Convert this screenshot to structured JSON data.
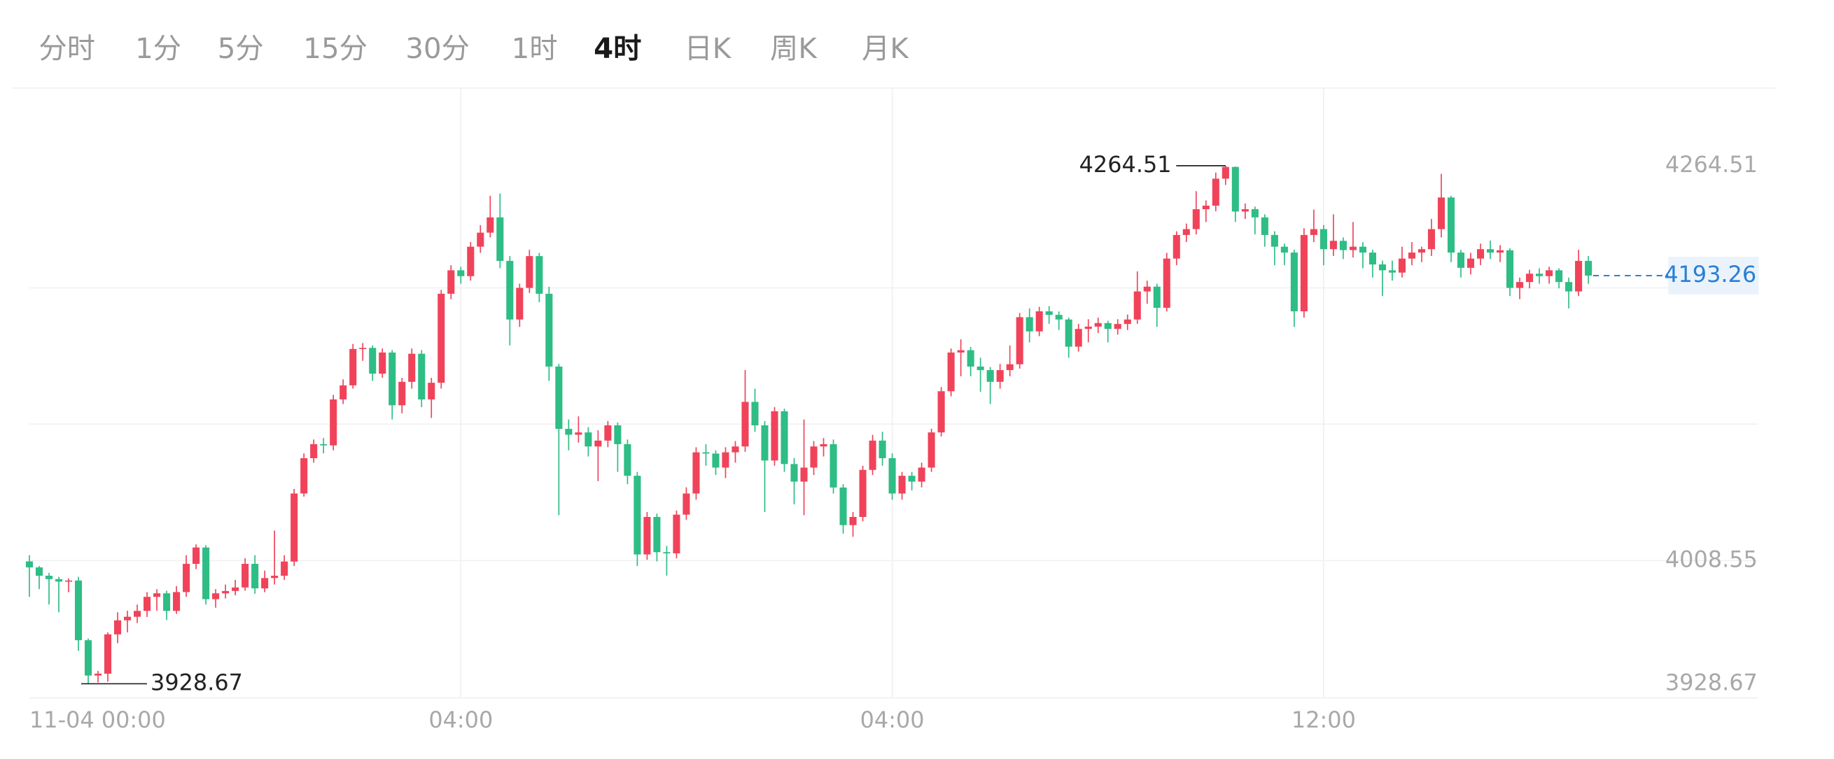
{
  "tabs": {
    "items": [
      "分时",
      "1分",
      "5分",
      "15分",
      "30分",
      "1时",
      "4时",
      "日K",
      "周K",
      "月K"
    ],
    "active": 6
  },
  "chart_data": {
    "type": "candlestick",
    "up_color": "#f0435a",
    "down_color": "#2ebd85",
    "last_color": "#2a7fd4",
    "ylim": [
      3919.5,
      4314.8
    ],
    "yticks": [
      3928.67,
      4008.55,
      4264.51
    ],
    "ygrid": [
      4008.55,
      4097.0,
      4185.3
    ],
    "xticks": [
      {
        "value": 0,
        "label": "11-04 00:00"
      },
      {
        "value": 44,
        "label": "04:00"
      },
      {
        "value": 88,
        "label": "04:00"
      },
      {
        "value": 132,
        "label": "12:00"
      }
    ],
    "high_index": 122,
    "low_index": 6,
    "candles": [
      [
        4008.0,
        4012.0,
        3985.0,
        4004.1
      ],
      [
        4004.1,
        4005.0,
        3990.0,
        3998.7
      ],
      [
        3998.7,
        4000.5,
        3980.0,
        3996.5
      ],
      [
        3996.5,
        3998.0,
        3975.0,
        3994.9
      ],
      [
        3994.9,
        3997.0,
        3988.0,
        3995.6
      ],
      [
        3995.6,
        3998.0,
        3950.0,
        3956.9
      ],
      [
        3956.9,
        3958.0,
        3928.67,
        3934.0
      ],
      [
        3934.0,
        3937.0,
        3929.5,
        3935.2
      ],
      [
        3935.2,
        3962.0,
        3930.0,
        3960.7
      ],
      [
        3960.7,
        3975.0,
        3955.0,
        3969.8
      ],
      [
        3969.8,
        3976.0,
        3962.0,
        3972.1
      ],
      [
        3972.1,
        3980.0,
        3968.0,
        3975.9
      ],
      [
        3975.9,
        3988.0,
        3972.0,
        3985.0
      ],
      [
        3985.0,
        3990.0,
        3976.0,
        3987.3
      ],
      [
        3987.3,
        3989.0,
        3970.0,
        3975.9
      ],
      [
        3975.9,
        3992.0,
        3974.0,
        3988.1
      ],
      [
        3988.1,
        4012.0,
        3985.0,
        4006.4
      ],
      [
        4006.4,
        4019.0,
        4003.0,
        4017.0
      ],
      [
        4017.0,
        4018.5,
        3980.0,
        3983.5
      ],
      [
        3983.5,
        3990.0,
        3978.0,
        3987.3
      ],
      [
        3987.3,
        3993.0,
        3984.0,
        3988.8
      ],
      [
        3988.8,
        3996.0,
        3986.0,
        3991.1
      ],
      [
        3991.1,
        4010.0,
        3989.0,
        4006.4
      ],
      [
        4006.4,
        4012.0,
        3987.0,
        3990.5
      ],
      [
        3990.5,
        4002.0,
        3988.0,
        3997.2
      ],
      [
        3997.2,
        4028.0,
        3993.0,
        3998.7
      ],
      [
        3998.7,
        4012.0,
        3996.0,
        4007.9
      ],
      [
        4007.9,
        4055.0,
        4005.0,
        4052.0
      ],
      [
        4052.0,
        4078.0,
        4050.0,
        4074.9
      ],
      [
        4074.9,
        4087.0,
        4072.0,
        4084.0
      ],
      [
        4084.0,
        4088.0,
        4078.0,
        4083.2
      ],
      [
        4083.2,
        4116.0,
        4080.0,
        4113.0
      ],
      [
        4113.0,
        4126.0,
        4110.0,
        4122.1
      ],
      [
        4122.1,
        4149.0,
        4120.0,
        4145.7
      ],
      [
        4145.7,
        4149.5,
        4138.0,
        4146.4
      ],
      [
        4146.4,
        4148.0,
        4125.0,
        4129.7
      ],
      [
        4129.7,
        4146.0,
        4127.0,
        4143.4
      ],
      [
        4143.4,
        4145.0,
        4100.0,
        4109.2
      ],
      [
        4109.2,
        4127.0,
        4104.0,
        4124.4
      ],
      [
        4124.4,
        4146.0,
        4120.0,
        4142.6
      ],
      [
        4142.6,
        4145.0,
        4108.0,
        4113.0
      ],
      [
        4113.0,
        4127.0,
        4101.0,
        4123.8
      ],
      [
        4123.8,
        4184.0,
        4120.0,
        4181.5
      ],
      [
        4181.5,
        4200.0,
        4178.0,
        4196.7
      ],
      [
        4196.7,
        4199.0,
        4188.0,
        4192.9
      ],
      [
        4192.9,
        4215.0,
        4190.0,
        4212.0
      ],
      [
        4212.0,
        4226.0,
        4208.0,
        4221.1
      ],
      [
        4221.1,
        4245.0,
        4218.0,
        4231.0
      ],
      [
        4231.0,
        4246.5,
        4198.0,
        4202.8
      ],
      [
        4202.8,
        4206.0,
        4148.0,
        4164.8
      ],
      [
        4164.8,
        4188.0,
        4160.0,
        4185.3
      ],
      [
        4185.3,
        4210.0,
        4182.0,
        4205.9
      ],
      [
        4205.9,
        4208.0,
        4176.0,
        4181.5
      ],
      [
        4181.5,
        4186.0,
        4125.0,
        4134.3
      ],
      [
        4134.3,
        4136.0,
        4038.0,
        4093.9
      ],
      [
        4093.9,
        4100.0,
        4080.0,
        4090.1
      ],
      [
        4090.1,
        4102.0,
        4085.0,
        4091.6
      ],
      [
        4091.6,
        4095.0,
        4076.0,
        4082.5
      ],
      [
        4082.5,
        4093.0,
        4060.0,
        4086.3
      ],
      [
        4086.3,
        4099.0,
        4082.0,
        4096.2
      ],
      [
        4096.2,
        4098.0,
        4066.0,
        4084.0
      ],
      [
        4084.0,
        4087.0,
        4058.0,
        4063.5
      ],
      [
        4063.5,
        4066.0,
        4005.0,
        4012.5
      ],
      [
        4012.5,
        4040.0,
        4009.0,
        4036.8
      ],
      [
        4036.8,
        4039.0,
        4008.0,
        4014.0
      ],
      [
        4014.0,
        4018.0,
        3998.8,
        4013.2
      ],
      [
        4013.2,
        4041.0,
        4010.0,
        4038.3
      ],
      [
        4038.3,
        4056.0,
        4035.0,
        4052.0
      ],
      [
        4052.0,
        4082.0,
        4048.0,
        4078.7
      ],
      [
        4078.7,
        4084.0,
        4070.0,
        4077.9
      ],
      [
        4077.9,
        4080.0,
        4064.0,
        4068.8
      ],
      [
        4068.8,
        4082.0,
        4062.0,
        4078.7
      ],
      [
        4078.7,
        4086.0,
        4072.0,
        4082.5
      ],
      [
        4082.5,
        4132.0,
        4079.0,
        4111.4
      ],
      [
        4111.4,
        4120.0,
        4092.0,
        4096.2
      ],
      [
        4096.2,
        4099.0,
        4040.0,
        4073.4
      ],
      [
        4073.4,
        4108.0,
        4070.0,
        4105.3
      ],
      [
        4105.3,
        4107.0,
        4066.0,
        4071.1
      ],
      [
        4071.1,
        4075.0,
        4045.0,
        4059.7
      ],
      [
        4059.7,
        4100.0,
        4038.0,
        4068.8
      ],
      [
        4068.8,
        4086.0,
        4064.0,
        4082.5
      ],
      [
        4082.5,
        4088.0,
        4076.0,
        4084.0
      ],
      [
        4084.0,
        4087.0,
        4052.0,
        4055.9
      ],
      [
        4055.9,
        4058.0,
        4026.0,
        4031.5
      ],
      [
        4031.5,
        4040.0,
        4024.0,
        4036.8
      ],
      [
        4036.8,
        4070.0,
        4034.0,
        4067.3
      ],
      [
        4067.3,
        4090.0,
        4064.0,
        4086.3
      ],
      [
        4086.3,
        4092.0,
        4070.0,
        4074.9
      ],
      [
        4074.9,
        4078.0,
        4048.0,
        4052.0
      ],
      [
        4052.0,
        4066.0,
        4048.0,
        4063.5
      ],
      [
        4063.5,
        4066.0,
        4054.0,
        4059.7
      ],
      [
        4059.7,
        4072.0,
        4056.0,
        4068.8
      ],
      [
        4068.8,
        4094.0,
        4066.0,
        4091.6
      ],
      [
        4091.6,
        4121.0,
        4089.0,
        4118.3
      ],
      [
        4118.3,
        4146.0,
        4115.0,
        4143.4
      ],
      [
        4143.4,
        4152.0,
        4128.0,
        4144.9
      ],
      [
        4144.9,
        4147.0,
        4128.0,
        4134.3
      ],
      [
        4134.3,
        4140.0,
        4118.0,
        4132.0
      ],
      [
        4132.0,
        4134.0,
        4110.0,
        4124.4
      ],
      [
        4124.4,
        4136.0,
        4120.0,
        4132.0
      ],
      [
        4132.0,
        4148.0,
        4128.0,
        4135.8
      ],
      [
        4135.8,
        4169.0,
        4133.0,
        4166.3
      ],
      [
        4166.3,
        4172.0,
        4150.0,
        4157.1
      ],
      [
        4157.1,
        4173.0,
        4154.0,
        4170.1
      ],
      [
        4170.1,
        4173.5,
        4162.0,
        4167.8
      ],
      [
        4167.8,
        4170.0,
        4158.0,
        4164.8
      ],
      [
        4164.8,
        4166.0,
        4140.0,
        4147.2
      ],
      [
        4147.2,
        4162.0,
        4144.0,
        4158.7
      ],
      [
        4158.7,
        4165.0,
        4150.0,
        4160.2
      ],
      [
        4160.2,
        4166.0,
        4156.0,
        4162.5
      ],
      [
        4162.5,
        4164.0,
        4150.0,
        4158.7
      ],
      [
        4158.7,
        4165.0,
        4155.0,
        4161.9
      ],
      [
        4161.9,
        4168.0,
        4158.0,
        4164.8
      ],
      [
        4164.8,
        4196.0,
        4162.0,
        4183.0
      ],
      [
        4183.0,
        4190.0,
        4175.0,
        4186.1
      ],
      [
        4186.1,
        4188.0,
        4160.0,
        4172.4
      ],
      [
        4172.4,
        4208.0,
        4170.0,
        4204.3
      ],
      [
        4204.3,
        4222.0,
        4200.0,
        4219.6
      ],
      [
        4219.6,
        4227.0,
        4215.0,
        4223.4
      ],
      [
        4223.4,
        4248.0,
        4220.0,
        4236.3
      ],
      [
        4236.3,
        4242.0,
        4228.0,
        4238.6
      ],
      [
        4238.6,
        4260.0,
        4235.0,
        4256.1
      ],
      [
        4256.1,
        4264.51,
        4252.0,
        4263.7
      ],
      [
        4263.7,
        4264.0,
        4228.0,
        4234.8
      ],
      [
        4234.8,
        4240.0,
        4230.0,
        4236.3
      ],
      [
        4236.3,
        4238.0,
        4220.0,
        4231.0
      ],
      [
        4231.0,
        4233.0,
        4212.0,
        4219.6
      ],
      [
        4219.6,
        4222.0,
        4200.0,
        4212.0
      ],
      [
        4212.0,
        4214.0,
        4200.0,
        4208.2
      ],
      [
        4208.2,
        4210.0,
        4160.0,
        4170.1
      ],
      [
        4170.1,
        4224.0,
        4166.0,
        4219.6
      ],
      [
        4219.6,
        4236.0,
        4215.0,
        4223.4
      ],
      [
        4223.4,
        4226.0,
        4200.0,
        4210.4
      ],
      [
        4210.4,
        4233.0,
        4206.0,
        4215.8
      ],
      [
        4215.8,
        4218.0,
        4204.0,
        4209.8
      ],
      [
        4209.8,
        4228.0,
        4205.0,
        4212.0
      ],
      [
        4212.0,
        4215.0,
        4198.0,
        4208.2
      ],
      [
        4208.2,
        4210.0,
        4192.0,
        4200.5
      ],
      [
        4200.5,
        4203.0,
        4180.0,
        4196.7
      ],
      [
        4196.7,
        4203.0,
        4190.0,
        4195.2
      ],
      [
        4195.2,
        4212.0,
        4192.0,
        4204.3
      ],
      [
        4204.3,
        4215.0,
        4200.0,
        4208.2
      ],
      [
        4208.2,
        4212.0,
        4202.0,
        4210.4
      ],
      [
        4210.4,
        4230.0,
        4206.0,
        4223.4
      ],
      [
        4223.4,
        4259.2,
        4218.0,
        4243.9
      ],
      [
        4243.9,
        4245.0,
        4202.0,
        4208.2
      ],
      [
        4208.2,
        4210.0,
        4192.0,
        4198.3
      ],
      [
        4198.3,
        4208.0,
        4194.0,
        4204.3
      ],
      [
        4204.3,
        4214.0,
        4200.0,
        4210.4
      ],
      [
        4210.4,
        4216.0,
        4204.0,
        4208.2
      ],
      [
        4208.2,
        4213.0,
        4202.0,
        4209.7
      ],
      [
        4209.7,
        4211.0,
        4180.0,
        4185.3
      ],
      [
        4185.3,
        4192.0,
        4178.0,
        4189.1
      ],
      [
        4189.1,
        4197.0,
        4185.0,
        4194.5
      ],
      [
        4194.5,
        4198.0,
        4188.0,
        4192.9
      ],
      [
        4192.9,
        4199.0,
        4188.0,
        4196.7
      ],
      [
        4196.7,
        4198.0,
        4185.0,
        4189.1
      ],
      [
        4189.1,
        4192.0,
        4172.0,
        4183.0
      ],
      [
        4183.0,
        4210.0,
        4180.0,
        4202.8
      ],
      [
        4202.8,
        4206.0,
        4188.0,
        4193.26
      ]
    ]
  }
}
